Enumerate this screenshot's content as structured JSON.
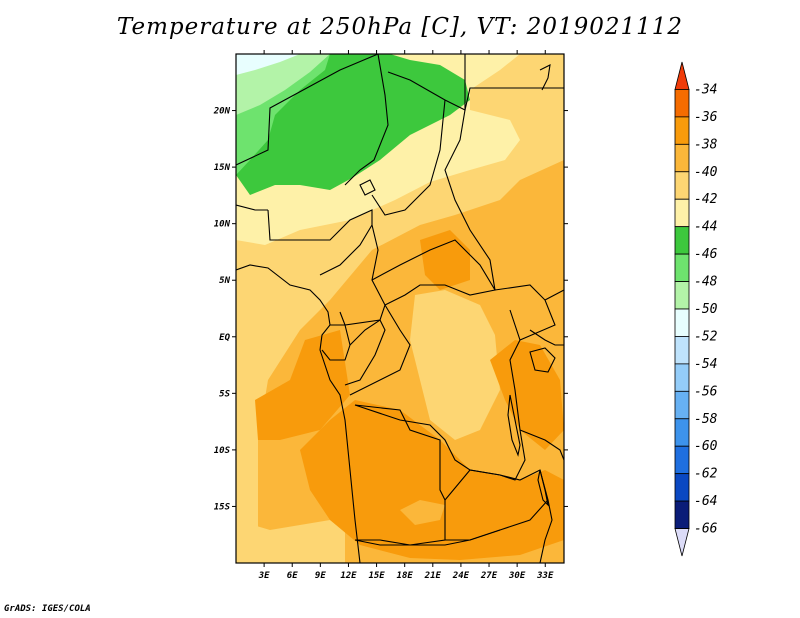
{
  "title": "Temperature at 250hPa [C], VT: 2019021112",
  "credit": "GrADS: IGES/COLA",
  "map": {
    "lon_range": [
      0,
      35
    ],
    "lat_range": [
      -20,
      25
    ],
    "lat_ticks": [
      {
        "value": 20,
        "label": "20N"
      },
      {
        "value": 15,
        "label": "15N"
      },
      {
        "value": 10,
        "label": "10N"
      },
      {
        "value": 5,
        "label": "5N"
      },
      {
        "value": 0,
        "label": "EQ"
      },
      {
        "value": -5,
        "label": "5S"
      },
      {
        "value": -10,
        "label": "10S"
      },
      {
        "value": -15,
        "label": "15S"
      }
    ],
    "lon_ticks": [
      {
        "value": 3,
        "label": "3E"
      },
      {
        "value": 6,
        "label": "6E"
      },
      {
        "value": 9,
        "label": "9E"
      },
      {
        "value": 12,
        "label": "12E"
      },
      {
        "value": 15,
        "label": "15E"
      },
      {
        "value": 18,
        "label": "18E"
      },
      {
        "value": 21,
        "label": "21E"
      },
      {
        "value": 24,
        "label": "24E"
      },
      {
        "value": 27,
        "label": "27E"
      },
      {
        "value": 30,
        "label": "30E"
      },
      {
        "value": 33,
        "label": "33E"
      }
    ]
  },
  "colorbar": {
    "levels": [
      "-34",
      "-36",
      "-38",
      "-40",
      "-42",
      "-44",
      "-46",
      "-48",
      "-50",
      "-52",
      "-54",
      "-56",
      "-58",
      "-60",
      "-62",
      "-64",
      "-66"
    ],
    "colors": [
      "#f03c0a",
      "#f56c00",
      "#f89b0c",
      "#fbb73a",
      "#fdd673",
      "#fef1a8",
      "#3dc83d",
      "#6ee36e",
      "#b3f3a8",
      "#e8fefe",
      "#bfe3fc",
      "#94cdf9",
      "#67b1f3",
      "#3d93ec",
      "#1f6fe0",
      "#0a48c2",
      "#0a1c78",
      "#dcdcf8"
    ]
  },
  "palette": {
    "c38": "#f89b0c",
    "c40": "#fbb73a",
    "c42": "#fdd673",
    "c44": "#fef1a8",
    "c46": "#3dc83d",
    "c48": "#6ee36e",
    "c50": "#b3f3a8",
    "c52": "#e8fefe"
  }
}
